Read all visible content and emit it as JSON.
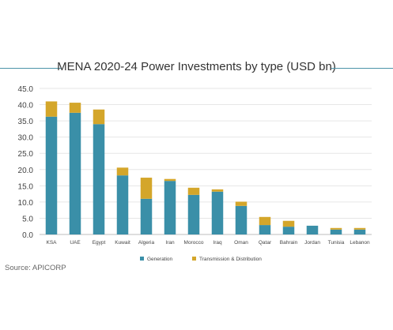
{
  "chart_data": {
    "type": "bar",
    "stacked": true,
    "title": "MENA 2020-24 Power Investments by type (USD bn)",
    "xlabel": "",
    "ylabel": "",
    "ylim": [
      0,
      45
    ],
    "yticks": [
      "0.0",
      "5.0",
      "10.0",
      "15.0",
      "20.0",
      "25.0",
      "30.0",
      "35.0",
      "40.0",
      "45.0"
    ],
    "grid": true,
    "legend_position": "bottom",
    "categories": [
      "KSA",
      "UAE",
      "Egypt",
      "Kuwait",
      "Algeria",
      "Iran",
      "Morocco",
      "Iraq",
      "Oman",
      "Qatar",
      "Bahrain",
      "Jordan",
      "Tunisia",
      "Lebanon"
    ],
    "series": [
      {
        "name": "Generation",
        "color": "#3a8fa8",
        "values": [
          36.3,
          37.5,
          34.0,
          18.2,
          11.0,
          16.5,
          12.2,
          13.2,
          8.8,
          2.9,
          2.4,
          2.7,
          1.5,
          1.5
        ]
      },
      {
        "name": "Transmission & Distribution",
        "color": "#d4a62a",
        "values": [
          4.7,
          3.1,
          4.5,
          2.4,
          6.5,
          0.6,
          2.2,
          0.7,
          1.3,
          2.5,
          1.8,
          0.0,
          0.5,
          0.5
        ]
      }
    ]
  },
  "source": "Source: APICORP"
}
